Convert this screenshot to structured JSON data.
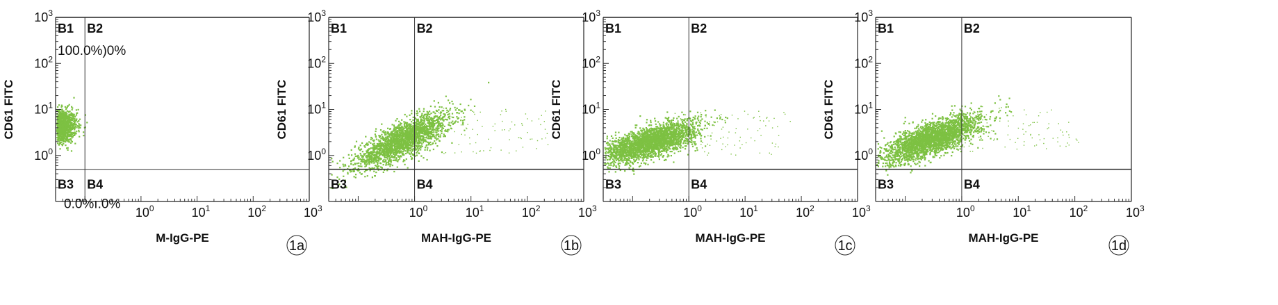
{
  "chart_data": [
    {
      "type": "scatter",
      "panel_label": "1a",
      "xlabel": "M-IgG-PE",
      "ylabel": "CD61 FITC",
      "x_scale": "log",
      "y_scale": "log",
      "xlim": [
        0.03,
        1000
      ],
      "ylim": [
        0.1,
        1000
      ],
      "x_gate": 0.1,
      "y_gate": 0.5,
      "x_ticks": [
        {
          "value": 1,
          "mantissa": "10",
          "exp": "0"
        },
        {
          "value": 10,
          "mantissa": "10",
          "exp": "1"
        },
        {
          "value": 100,
          "mantissa": "10",
          "exp": "2"
        },
        {
          "value": 1000,
          "mantissa": "10",
          "exp": "3"
        }
      ],
      "y_ticks": [
        {
          "value": 1,
          "mantissa": "10",
          "exp": "0"
        },
        {
          "value": 10,
          "mantissa": "10",
          "exp": "1"
        },
        {
          "value": 100,
          "mantissa": "10",
          "exp": "2"
        },
        {
          "value": 1000,
          "mantissa": "10",
          "exp": "3"
        }
      ],
      "quadrants": {
        "B1": "B1",
        "B2": "B2",
        "B3": "B3",
        "B4": "B4"
      },
      "quadrant_values": {
        "upper": "100.0%)0%",
        "lower": "0.0%ı.0%"
      },
      "population": {
        "x_center": 0.035,
        "y_center": 4.5,
        "x_spread": 0.15,
        "y_spread": 0.18,
        "count": 1400
      },
      "color": "#7dc142"
    },
    {
      "type": "scatter",
      "panel_label": "1b",
      "xlabel": "MAH-IgG-PE",
      "ylabel": "CD61 FITC",
      "x_scale": "log",
      "y_scale": "log",
      "xlim": [
        0.03,
        1000
      ],
      "ylim": [
        0.1,
        1000
      ],
      "x_gate": 1,
      "y_gate": 0.5,
      "x_ticks": [
        {
          "value": 1,
          "mantissa": "10",
          "exp": "0"
        },
        {
          "value": 10,
          "mantissa": "10",
          "exp": "1"
        },
        {
          "value": 100,
          "mantissa": "10",
          "exp": "2"
        },
        {
          "value": 1000,
          "mantissa": "10",
          "exp": "3"
        }
      ],
      "y_ticks": [
        {
          "value": 1,
          "mantissa": "10",
          "exp": "0"
        },
        {
          "value": 10,
          "mantissa": "10",
          "exp": "1"
        },
        {
          "value": 100,
          "mantissa": "10",
          "exp": "2"
        },
        {
          "value": 1000,
          "mantissa": "10",
          "exp": "3"
        }
      ],
      "quadrants": {
        "B1": "B1",
        "B2": "B2",
        "B3": "B3",
        "B4": "B4"
      },
      "population": {
        "x_center": 0.6,
        "y_center": 2.2,
        "x_spread": 0.42,
        "y_spread": 0.3,
        "corr": 0.78,
        "count": 2200
      },
      "color": "#7dc142"
    },
    {
      "type": "scatter",
      "panel_label": "1c",
      "xlabel": "MAH-IgG-PE",
      "ylabel": "CD61 FITC",
      "x_scale": "log",
      "y_scale": "log",
      "xlim": [
        0.03,
        1000
      ],
      "ylim": [
        0.1,
        1000
      ],
      "x_gate": 1,
      "y_gate": 0.5,
      "x_ticks": [
        {
          "value": 1,
          "mantissa": "10",
          "exp": "0"
        },
        {
          "value": 10,
          "mantissa": "10",
          "exp": "1"
        },
        {
          "value": 100,
          "mantissa": "10",
          "exp": "2"
        },
        {
          "value": 1000,
          "mantissa": "10",
          "exp": "3"
        }
      ],
      "y_ticks": [
        {
          "value": 1,
          "mantissa": "10",
          "exp": "0"
        },
        {
          "value": 10,
          "mantissa": "10",
          "exp": "1"
        },
        {
          "value": 100,
          "mantissa": "10",
          "exp": "2"
        },
        {
          "value": 1000,
          "mantissa": "10",
          "exp": "3"
        }
      ],
      "quadrants": {
        "B1": "B1",
        "B2": "B2",
        "B3": "B3",
        "B4": "B4"
      },
      "population": {
        "x_center": 0.2,
        "y_center": 2.0,
        "x_spread": 0.42,
        "y_spread": 0.22,
        "corr": 0.65,
        "count": 2600
      },
      "color": "#7dc142"
    },
    {
      "type": "scatter",
      "panel_label": "1d",
      "xlabel": "MAH-IgG-PE",
      "ylabel": "CD61 FITC",
      "x_scale": "log",
      "y_scale": "log",
      "xlim": [
        0.03,
        1000
      ],
      "ylim": [
        0.1,
        1000
      ],
      "x_gate": 1,
      "y_gate": 0.5,
      "x_ticks": [
        {
          "value": 1,
          "mantissa": "10",
          "exp": "0"
        },
        {
          "value": 10,
          "mantissa": "10",
          "exp": "1"
        },
        {
          "value": 100,
          "mantissa": "10",
          "exp": "2"
        },
        {
          "value": 1000,
          "mantissa": "10",
          "exp": "3"
        }
      ],
      "y_ticks": [
        {
          "value": 1,
          "mantissa": "10",
          "exp": "0"
        },
        {
          "value": 10,
          "mantissa": "10",
          "exp": "1"
        },
        {
          "value": 100,
          "mantissa": "10",
          "exp": "2"
        },
        {
          "value": 1000,
          "mantissa": "10",
          "exp": "3"
        }
      ],
      "quadrants": {
        "B1": "B1",
        "B2": "B2",
        "B3": "B3",
        "B4": "B4"
      },
      "population": {
        "x_center": 0.3,
        "y_center": 2.4,
        "x_spread": 0.42,
        "y_spread": 0.25,
        "corr": 0.72,
        "count": 2600
      },
      "color": "#7dc142"
    }
  ]
}
